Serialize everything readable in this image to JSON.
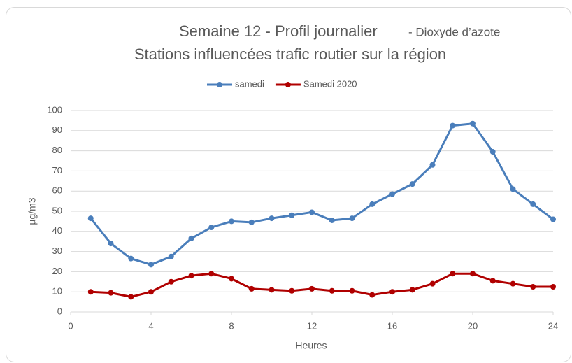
{
  "chart_data": {
    "type": "line",
    "title": [
      "Semaine 12 - Profil journalier",
      "- Dioxyde d’azote"
    ],
    "subtitle": "Stations influencées trafic routier sur la région",
    "xlabel": "Heures",
    "ylabel": "µg/m3",
    "x": [
      1,
      2,
      3,
      4,
      5,
      6,
      7,
      8,
      9,
      10,
      11,
      12,
      13,
      14,
      15,
      16,
      17,
      18,
      19,
      20,
      21,
      22,
      23,
      24
    ],
    "series": [
      {
        "name": "samedi",
        "color": "#4a7ebb",
        "values": [
          46.5,
          34,
          26.5,
          23.5,
          27.5,
          36.5,
          42,
          45,
          44.5,
          46.5,
          48,
          49.5,
          45.5,
          46.5,
          53.5,
          58.5,
          63.5,
          73,
          92.5,
          93.5,
          79.5,
          61,
          53.5,
          46
        ]
      },
      {
        "name": "Samedi 2020",
        "color": "#b00000",
        "values": [
          10,
          9.5,
          7.5,
          10,
          15,
          18,
          19,
          16.5,
          11.5,
          11,
          10.5,
          11.5,
          10.5,
          10.5,
          8.5,
          10,
          11,
          14,
          19,
          19,
          15.5,
          14,
          12.5,
          12.5
        ]
      }
    ],
    "xlim": [
      0,
      24
    ],
    "xticks": [
      0,
      4,
      8,
      12,
      16,
      20,
      24
    ],
    "ylim": [
      0,
      100
    ],
    "yticks": [
      0,
      10,
      20,
      30,
      40,
      50,
      60,
      70,
      80,
      90,
      100
    ],
    "grid": true,
    "legend": "top"
  }
}
